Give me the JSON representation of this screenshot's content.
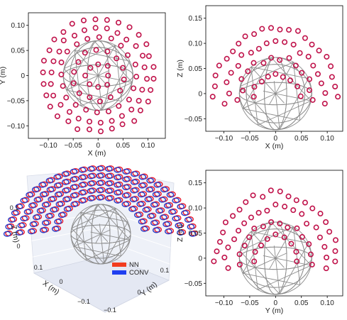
{
  "chart_data": [
    {
      "type": "scatter",
      "xlabel": "X (m)",
      "ylabel": "Y (m)",
      "xlim": [
        -0.14,
        0.135
      ],
      "ylim": [
        -0.125,
        0.125
      ],
      "xticks": [
        -0.1,
        -0.05,
        0,
        0.05,
        0.1
      ],
      "xtick_labels": [
        "−0.10",
        "−0.05",
        "0",
        "0.05",
        "0.10"
      ],
      "yticks": [
        -0.1,
        -0.05,
        0,
        0.05,
        0.1
      ],
      "ytick_labels": [
        "−0.10",
        "−0.05",
        "0",
        "0.05",
        "0.10"
      ],
      "sphere_radius": 0.07,
      "series": [
        {
          "name": "NN",
          "color": "#e8192c"
        },
        {
          "name": "CONV",
          "color": "#2b3cc7"
        }
      ]
    },
    {
      "type": "scatter",
      "xlabel": "X (m)",
      "ylabel": "Z (m)",
      "xlim": [
        -0.135,
        0.13
      ],
      "ylim": [
        -0.075,
        0.175
      ],
      "xticks": [
        -0.1,
        -0.05,
        0,
        0.05,
        0.1
      ],
      "xtick_labels": [
        "−0.10",
        "−0.05",
        "0",
        "0.05",
        "0.10"
      ],
      "yticks": [
        -0.05,
        0,
        0.05,
        0.1,
        0.15
      ],
      "ytick_labels": [
        "−0.05",
        "0",
        "0.05",
        "0.10",
        "0.15"
      ],
      "sphere_radius": 0.07
    },
    {
      "type": "scatter",
      "title_3d": true,
      "xlabel": "X (m)",
      "ylabel": "Y (m)",
      "zlabel": "Z (m)",
      "tick_labels_x": [
        "0.1",
        "0",
        "−0.1"
      ],
      "tick_labels_y": [
        "−0.1",
        "0",
        "0.1"
      ],
      "tick_labels_z": [
        "0.1",
        "0"
      ],
      "legend": [
        {
          "label": "NN",
          "color": "#f23c1e"
        },
        {
          "label": "CONV",
          "color": "#1f3ff0"
        }
      ],
      "legend_position": "bottom-right"
    },
    {
      "type": "scatter",
      "xlabel": "Y (m)",
      "ylabel": "Z (m)",
      "xlim": [
        -0.135,
        0.13
      ],
      "ylim": [
        -0.075,
        0.175
      ],
      "xticks": [
        -0.1,
        -0.05,
        0,
        0.05,
        0.1
      ],
      "xtick_labels": [
        "−0.10",
        "−0.05",
        "0",
        "0.05",
        "0.10"
      ],
      "yticks": [
        -0.05,
        0,
        0.05,
        0.1,
        0.15
      ],
      "ytick_labels": [
        "−0.05",
        "0",
        "0.05",
        "0.10",
        "0.15"
      ],
      "sphere_radius": 0.07
    }
  ]
}
